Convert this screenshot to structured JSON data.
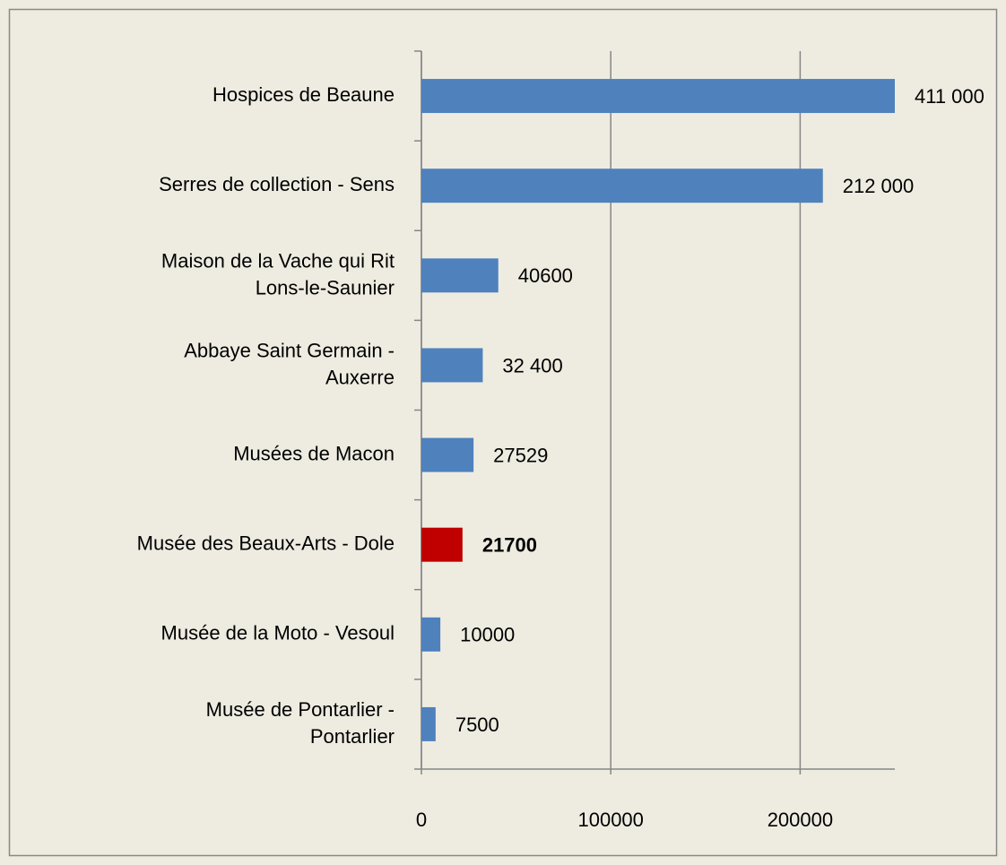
{
  "chart_data": {
    "type": "barh",
    "categories": [
      "Hospices de Beaune",
      "Serres de collection - Sens",
      "Maison de la Vache qui Rit\nLons-le-Saunier",
      "Abbaye Saint Germain -\nAuxerre",
      "Musées de Macon",
      "Musée des Beaux-Arts - Dole",
      "Musée de la Moto - Vesoul",
      "Musée de Pontarlier -\nPontarlier"
    ],
    "values": [
      411000,
      212000,
      40600,
      32400,
      27529,
      21700,
      10000,
      7500
    ],
    "value_labels": [
      "411 000",
      "212 000",
      "40600",
      "32 400",
      "27529",
      "21700",
      "10000",
      "7500"
    ],
    "colors": [
      "#4f81bd",
      "#4f81bd",
      "#4f81bd",
      "#4f81bd",
      "#4f81bd",
      "#c00000",
      "#4f81bd",
      "#4f81bd"
    ],
    "highlight_bold": [
      false,
      false,
      false,
      false,
      false,
      true,
      false,
      false
    ],
    "xlim": [
      0,
      250000
    ],
    "xticks": [
      0,
      100000,
      200000
    ],
    "grid": true
  }
}
